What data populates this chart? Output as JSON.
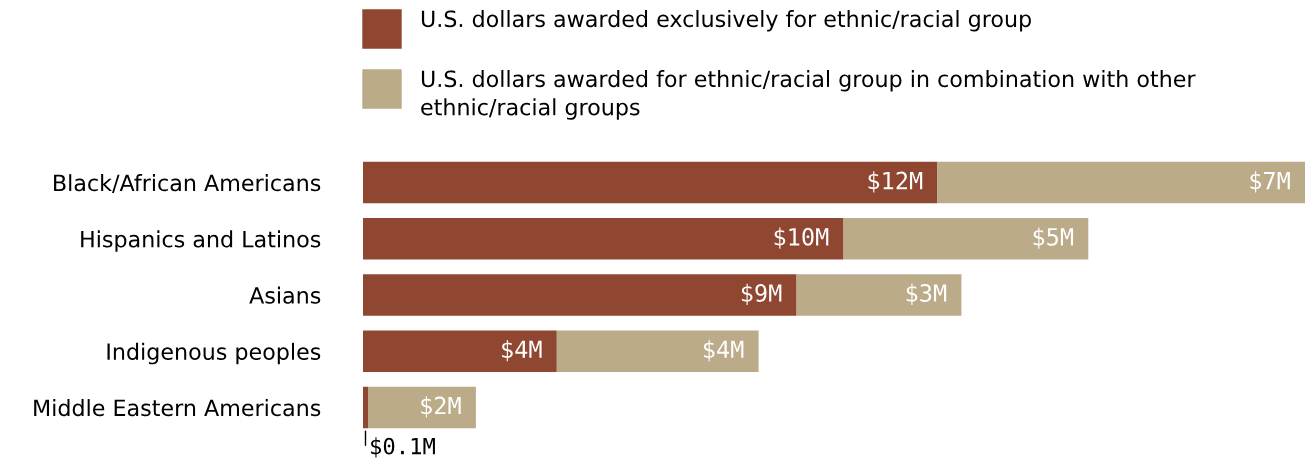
{
  "chart_data": {
    "type": "bar",
    "orientation": "horizontal",
    "stacked": true,
    "categories": [
      "Black/African Americans",
      "Hispanics and Latinos",
      "Asians",
      "Indigenous peoples",
      "Middle Eastern Americans"
    ],
    "series": [
      {
        "name": "U.S. dollars awarded exclusively for ethnic/racial group",
        "color": "#8f4731",
        "values": [
          11.5,
          9.62,
          8.68,
          3.88,
          0.1
        ],
        "value_labels": [
          "$12M",
          "$10M",
          "$9M",
          "$4M",
          null
        ]
      },
      {
        "name": "U.S. dollars awarded for ethnic/racial group in combination with other ethnic/racial groups",
        "color": "#bbab89",
        "values": [
          7.36,
          4.9,
          3.3,
          4.04,
          2.16
        ],
        "value_labels": [
          "$7M",
          "$5M",
          "$3M",
          "$4M",
          "$2M"
        ]
      }
    ],
    "annotations": [
      {
        "text": "$0.1M",
        "x": 0.1,
        "y": "Middle Eastern Americans"
      }
    ],
    "legend": "top",
    "grid": false
  }
}
